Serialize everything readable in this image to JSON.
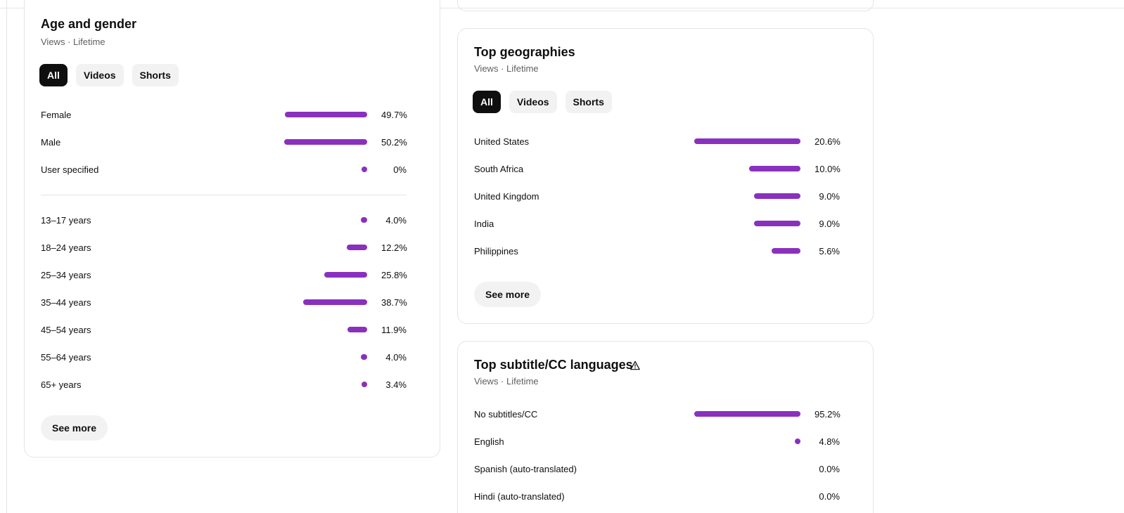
{
  "age_gender": {
    "title": "Age and gender",
    "subtitle": "Views · Lifetime",
    "chips": [
      "All",
      "Videos",
      "Shorts"
    ],
    "active_chip": "All",
    "gender_rows": [
      {
        "label": "Female",
        "value_text": "49.7%",
        "value": 49.7
      },
      {
        "label": "Male",
        "value_text": "50.2%",
        "value": 50.2
      },
      {
        "label": "User specified",
        "value_text": "0%",
        "value": 0
      }
    ],
    "age_rows": [
      {
        "label": "13–17 years",
        "value_text": "4.0%",
        "value": 4.0
      },
      {
        "label": "18–24 years",
        "value_text": "12.2%",
        "value": 12.2
      },
      {
        "label": "25–34 years",
        "value_text": "25.8%",
        "value": 25.8
      },
      {
        "label": "35–44 years",
        "value_text": "38.7%",
        "value": 38.7
      },
      {
        "label": "45–54 years",
        "value_text": "11.9%",
        "value": 11.9
      },
      {
        "label": "55–64 years",
        "value_text": "4.0%",
        "value": 4.0
      },
      {
        "label": "65+ years",
        "value_text": "3.4%",
        "value": 3.4
      }
    ],
    "see_more": "See more"
  },
  "geographies": {
    "title": "Top geographies",
    "subtitle": "Views · Lifetime",
    "chips": [
      "All",
      "Videos",
      "Shorts"
    ],
    "active_chip": "All",
    "rows": [
      {
        "label": "United States",
        "value_text": "20.6%",
        "value": 20.6
      },
      {
        "label": "South Africa",
        "value_text": "10.0%",
        "value": 10.0
      },
      {
        "label": "United Kingdom",
        "value_text": "9.0%",
        "value": 9.0
      },
      {
        "label": "India",
        "value_text": "9.0%",
        "value": 9.0
      },
      {
        "label": "Philippines",
        "value_text": "5.6%",
        "value": 5.6
      }
    ],
    "see_more": "See more"
  },
  "subtitles": {
    "title": "Top subtitle/CC languages",
    "title_icon": "warning-icon",
    "subtitle": "Views · Lifetime",
    "rows": [
      {
        "label": "No subtitles/CC",
        "value_text": "95.2%",
        "value": 95.2
      },
      {
        "label": "English",
        "value_text": "4.8%",
        "value": 4.8
      },
      {
        "label": "Spanish (auto-translated)",
        "value_text": "0.0%",
        "value": 0.0
      },
      {
        "label": "Hindi (auto-translated)",
        "value_text": "0.0%",
        "value": 0.0
      }
    ]
  },
  "colors": {
    "bar": "#8a30be",
    "chip_active_bg": "#0f0f0f",
    "chip_bg": "#f2f2f2"
  }
}
